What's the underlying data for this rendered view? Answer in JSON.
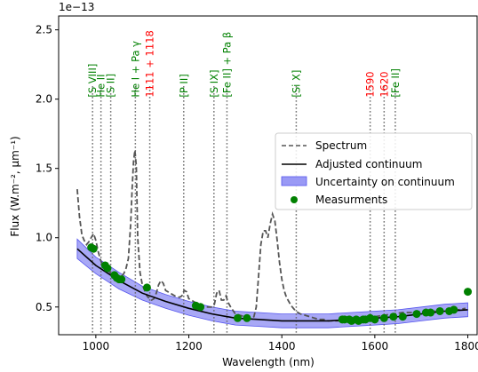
{
  "chart_data": {
    "type": "line",
    "xlabel": "Wavelength (nm)",
    "ylabel": "Flux (W.m⁻², µm⁻¹)",
    "offset_text": "1e−13",
    "xlim": [
      920,
      1820
    ],
    "ylim": [
      0.3,
      2.6
    ],
    "xticks": [
      1000,
      1200,
      1400,
      1600,
      1800
    ],
    "yticks": [
      0.5,
      1.0,
      1.5,
      2.0,
      2.5
    ],
    "xtick_labels": [
      "1000",
      "1200",
      "1400",
      "1600",
      "1800"
    ],
    "ytick_labels": [
      "0.5",
      "1.0",
      "1.5",
      "2.0",
      "2.5"
    ],
    "grid": false,
    "legend_position": "right",
    "colors": {
      "spectrum": "#555555",
      "continuum": "#000000",
      "uncertainty": "#9999f5",
      "measurements": "#008000",
      "line_marker": "#666666",
      "label_green": "#008000",
      "label_red": "#ff0000"
    },
    "series": [
      {
        "name": "Spectrum",
        "style": "dashed",
        "x": [
          960,
          965,
          970,
          975,
          980,
          985,
          990,
          995,
          1000,
          1005,
          1010,
          1015,
          1020,
          1025,
          1030,
          1035,
          1040,
          1045,
          1050,
          1055,
          1060,
          1065,
          1070,
          1075,
          1078,
          1081,
          1084,
          1087,
          1090,
          1095,
          1100,
          1105,
          1110,
          1115,
          1120,
          1125,
          1130,
          1135,
          1140,
          1145,
          1150,
          1160,
          1170,
          1180,
          1185,
          1190,
          1195,
          1200,
          1210,
          1220,
          1230,
          1240,
          1250,
          1255,
          1260,
          1265,
          1270,
          1275,
          1280,
          1285,
          1290,
          1300,
          1310,
          1320,
          1330,
          1340,
          1345,
          1350,
          1355,
          1360,
          1365,
          1370,
          1375,
          1380,
          1385,
          1390,
          1395,
          1400,
          1405,
          1410,
          1420,
          1430,
          1440,
          1450,
          1460,
          1470,
          1480,
          1490,
          1500,
          1520,
          1540,
          1560,
          1580,
          1600,
          1620,
          1640,
          1660,
          1680,
          1700,
          1720,
          1740,
          1760,
          1780,
          1795
        ],
        "y": [
          1.35,
          1.15,
          1.02,
          0.98,
          0.95,
          0.97,
          1.0,
          1.03,
          0.98,
          0.9,
          0.84,
          0.8,
          0.78,
          0.76,
          0.75,
          0.73,
          0.72,
          0.71,
          0.71,
          0.72,
          0.74,
          0.78,
          0.85,
          1.1,
          1.35,
          1.55,
          1.63,
          1.52,
          1.0,
          0.75,
          0.66,
          0.62,
          0.58,
          0.56,
          0.55,
          0.56,
          0.6,
          0.66,
          0.69,
          0.67,
          0.62,
          0.6,
          0.58,
          0.57,
          0.58,
          0.62,
          0.61,
          0.56,
          0.54,
          0.52,
          0.51,
          0.5,
          0.5,
          0.52,
          0.6,
          0.62,
          0.55,
          0.55,
          0.58,
          0.53,
          0.5,
          0.45,
          0.44,
          0.43,
          0.42,
          0.43,
          0.5,
          0.72,
          0.95,
          1.05,
          1.05,
          1.0,
          1.1,
          1.17,
          1.12,
          0.98,
          0.82,
          0.7,
          0.62,
          0.57,
          0.51,
          0.47,
          0.45,
          0.44,
          0.43,
          0.42,
          0.41,
          0.41,
          0.4,
          0.4,
          0.4,
          0.41,
          0.42,
          0.43,
          0.44,
          0.45,
          0.46,
          0.46,
          0.47,
          0.47,
          0.47,
          0.48,
          0.48,
          0.49
        ]
      },
      {
        "name": "Adjusted continuum",
        "style": "solid",
        "x": [
          960,
          1000,
          1050,
          1100,
          1150,
          1200,
          1250,
          1300,
          1350,
          1400,
          1450,
          1500,
          1550,
          1600,
          1650,
          1700,
          1750,
          1800
        ],
        "y": [
          0.92,
          0.8,
          0.69,
          0.6,
          0.54,
          0.49,
          0.45,
          0.42,
          0.41,
          0.4,
          0.4,
          0.4,
          0.41,
          0.42,
          0.43,
          0.45,
          0.47,
          0.48
        ]
      },
      {
        "name": "Uncertainty on continuum",
        "style": "band",
        "x": [
          960,
          1000,
          1050,
          1100,
          1150,
          1200,
          1250,
          1300,
          1350,
          1400,
          1450,
          1500,
          1550,
          1600,
          1650,
          1700,
          1750,
          1800
        ],
        "upper": [
          0.99,
          0.86,
          0.75,
          0.65,
          0.59,
          0.54,
          0.5,
          0.47,
          0.46,
          0.45,
          0.45,
          0.45,
          0.46,
          0.47,
          0.48,
          0.5,
          0.52,
          0.53
        ],
        "lower": [
          0.85,
          0.74,
          0.63,
          0.55,
          0.49,
          0.44,
          0.4,
          0.37,
          0.36,
          0.35,
          0.35,
          0.35,
          0.36,
          0.37,
          0.38,
          0.4,
          0.42,
          0.43
        ]
      },
      {
        "name": "Measurments",
        "style": "markers",
        "x": [
          990,
          995,
          1020,
          1025,
          1040,
          1045,
          1050,
          1055,
          1110,
          1215,
          1225,
          1305,
          1325,
          1530,
          1535,
          1545,
          1550,
          1560,
          1565,
          1575,
          1580,
          1590,
          1600,
          1620,
          1640,
          1660,
          1690,
          1710,
          1720,
          1740,
          1760,
          1770,
          1800
        ],
        "y": [
          0.93,
          0.92,
          0.8,
          0.78,
          0.73,
          0.71,
          0.7,
          0.7,
          0.64,
          0.51,
          0.5,
          0.42,
          0.42,
          0.41,
          0.41,
          0.41,
          0.4,
          0.41,
          0.4,
          0.41,
          0.41,
          0.42,
          0.41,
          0.42,
          0.43,
          0.43,
          0.45,
          0.46,
          0.46,
          0.47,
          0.47,
          0.48,
          0.61
        ]
      }
    ],
    "lines": [
      {
        "x": 993,
        "label": "[S VIII]",
        "color": "green"
      },
      {
        "x": 1011,
        "label": "He II",
        "color": "green"
      },
      {
        "x": 1032,
        "label": "[S II]",
        "color": "green"
      },
      {
        "x": 1085,
        "label": "He I + Pa γ",
        "color": "green"
      },
      {
        "x": 1116,
        "label": "1111 + 1118",
        "color": "red"
      },
      {
        "x": 1189,
        "label": "[P II]",
        "color": "green"
      },
      {
        "x": 1254,
        "label": "[S IX]",
        "color": "green"
      },
      {
        "x": 1282,
        "label": "[Fe II] + Pa β",
        "color": "green"
      },
      {
        "x": 1431,
        "label": "[Si X]",
        "color": "green"
      },
      {
        "x": 1590,
        "label": "1590",
        "color": "red"
      },
      {
        "x": 1620,
        "label": "1620",
        "color": "red"
      },
      {
        "x": 1644,
        "label": "[Fe II]",
        "color": "green"
      }
    ]
  }
}
